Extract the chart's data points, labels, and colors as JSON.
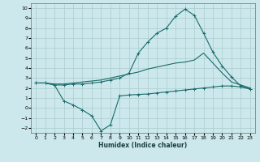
{
  "xlabel": "Humidex (Indice chaleur)",
  "bg_color": "#cce8ec",
  "grid_color": "#aacccc",
  "line_color": "#1a6b6b",
  "xlim": [
    -0.5,
    23.5
  ],
  "ylim": [
    -2.5,
    10.5
  ],
  "xticks": [
    0,
    1,
    2,
    3,
    4,
    5,
    6,
    7,
    8,
    9,
    10,
    11,
    12,
    13,
    14,
    15,
    16,
    17,
    18,
    19,
    20,
    21,
    22,
    23
  ],
  "yticks": [
    -2,
    -1,
    0,
    1,
    2,
    3,
    4,
    5,
    6,
    7,
    8,
    9,
    10
  ],
  "line1_x": [
    0,
    1,
    2,
    3,
    4,
    5,
    6,
    7,
    8,
    9,
    10,
    11,
    12,
    13,
    14,
    15,
    16,
    17,
    18,
    19,
    20,
    21,
    22,
    23
  ],
  "line1_y": [
    2.5,
    2.5,
    2.3,
    2.3,
    2.4,
    2.4,
    2.5,
    2.6,
    2.8,
    3.0,
    3.5,
    5.5,
    6.6,
    7.5,
    8.0,
    9.2,
    9.9,
    9.3,
    7.5,
    5.6,
    4.2,
    3.1,
    2.2,
    1.9
  ],
  "line2_x": [
    0,
    1,
    2,
    3,
    4,
    5,
    6,
    7,
    8,
    9,
    10,
    11,
    12,
    13,
    14,
    15,
    16,
    17,
    18,
    19,
    20,
    21,
    22,
    23
  ],
  "line2_y": [
    2.5,
    2.5,
    2.4,
    2.4,
    2.5,
    2.6,
    2.7,
    2.8,
    3.0,
    3.2,
    3.4,
    3.6,
    3.9,
    4.1,
    4.3,
    4.5,
    4.6,
    4.8,
    5.5,
    4.5,
    3.5,
    2.6,
    2.3,
    2.0
  ],
  "line3_x": [
    0,
    1,
    2,
    3,
    4,
    5,
    6,
    7,
    8,
    9,
    10,
    11,
    12,
    13,
    14,
    15,
    16,
    17,
    18,
    19,
    20,
    21,
    22,
    23
  ],
  "line3_y": [
    2.5,
    2.5,
    2.3,
    0.7,
    0.3,
    -0.2,
    -0.8,
    -2.3,
    -1.7,
    1.2,
    1.3,
    1.35,
    1.4,
    1.5,
    1.6,
    1.7,
    1.8,
    1.9,
    2.0,
    2.1,
    2.2,
    2.2,
    2.1,
    1.9
  ]
}
